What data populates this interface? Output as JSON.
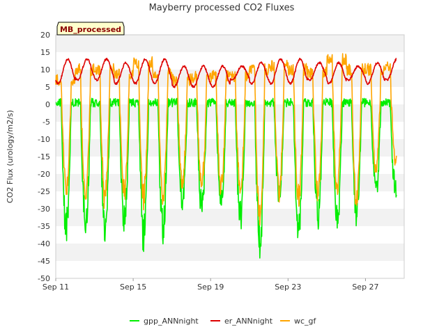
{
  "chart_data": {
    "type": "line",
    "title": "Mayberry processed CO2 Fluxes",
    "ylabel": "CO2 Flux (urology/m2/s)",
    "xlabel": "",
    "ylim": [
      -50,
      20
    ],
    "yticks": [
      20,
      15,
      10,
      5,
      0,
      -5,
      -10,
      -15,
      -20,
      -25,
      -30,
      -35,
      -40,
      -45,
      -50
    ],
    "xlim_days": [
      11,
      29
    ],
    "xticks": [
      {
        "label": "Sep 11",
        "day": 11
      },
      {
        "label": "Sep 15",
        "day": 15
      },
      {
        "label": "Sep 19",
        "day": 19
      },
      {
        "label": "Sep 23",
        "day": 23
      },
      {
        "label": "Sep 27",
        "day": 27
      }
    ],
    "grid": "horizontal bands",
    "badge": "MB_processed",
    "legend_position": "bottom",
    "daily": {
      "days": [
        11,
        12,
        13,
        14,
        15,
        16,
        17,
        18,
        19,
        20,
        21,
        22,
        23,
        24,
        25,
        26,
        27,
        28
      ],
      "gpp_min": [
        -40,
        -40,
        -40,
        -38,
        -42,
        -40,
        -32,
        -33,
        -32,
        -37,
        -45,
        -30,
        -42,
        -36,
        -38,
        -35,
        -28,
        -28
      ],
      "er_max": [
        13,
        13,
        13,
        12,
        13,
        13,
        11,
        11,
        11,
        11,
        12,
        13,
        13,
        12,
        12,
        11,
        12,
        13
      ],
      "er_min": [
        6,
        7,
        7,
        6,
        6,
        6,
        5,
        5,
        5,
        7,
        6,
        6,
        6,
        7,
        6,
        7,
        6,
        7
      ],
      "wc_min": [
        -27,
        -30,
        -30,
        -28,
        -30,
        -28,
        -25,
        -26,
        -26,
        -28,
        -36,
        -28,
        -30,
        -28,
        -28,
        -30,
        -20,
        -18
      ],
      "wc_max": [
        10,
        13,
        13,
        12,
        15,
        12,
        10,
        11,
        11,
        11,
        13,
        14,
        13,
        12,
        16,
        13,
        13,
        14
      ]
    },
    "series": [
      {
        "name": "gpp_ANNnight",
        "color": "#00ee00"
      },
      {
        "name": "er_ANNnight",
        "color": "#dd0000"
      },
      {
        "name": "wc_gf",
        "color": "#ffa500"
      }
    ]
  }
}
